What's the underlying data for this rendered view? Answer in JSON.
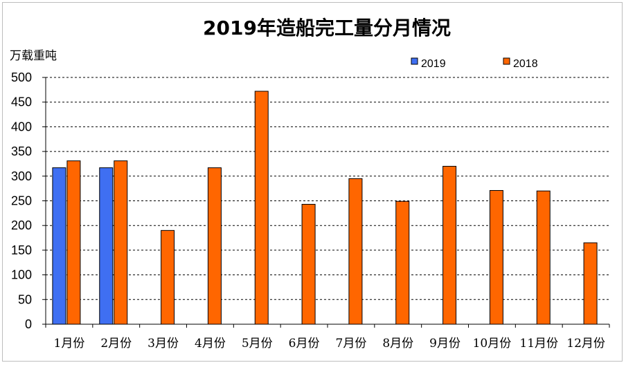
{
  "chart_data": {
    "type": "bar",
    "title": "2019年造船完工量分月情况",
    "ylabel": "万载重吨",
    "xlabel": "",
    "categories": [
      "1月份",
      "2月份",
      "3月份",
      "4月份",
      "5月份",
      "6月份",
      "7月份",
      "8月份",
      "9月份",
      "10月份",
      "11月份",
      "12月份"
    ],
    "series": [
      {
        "name": "2019",
        "color": "#3f6ff2",
        "values": [
          317,
          317,
          null,
          null,
          null,
          null,
          null,
          null,
          null,
          null,
          null,
          null
        ]
      },
      {
        "name": "2018",
        "color": "#ff6600",
        "values": [
          331,
          331,
          190,
          317,
          472,
          243,
          295,
          249,
          320,
          271,
          270,
          165
        ]
      }
    ],
    "ylim": [
      0,
      500
    ],
    "yticks": [
      0,
      50,
      100,
      150,
      200,
      250,
      300,
      350,
      400,
      450,
      500
    ],
    "grid": true,
    "legend_position": "top-right"
  }
}
